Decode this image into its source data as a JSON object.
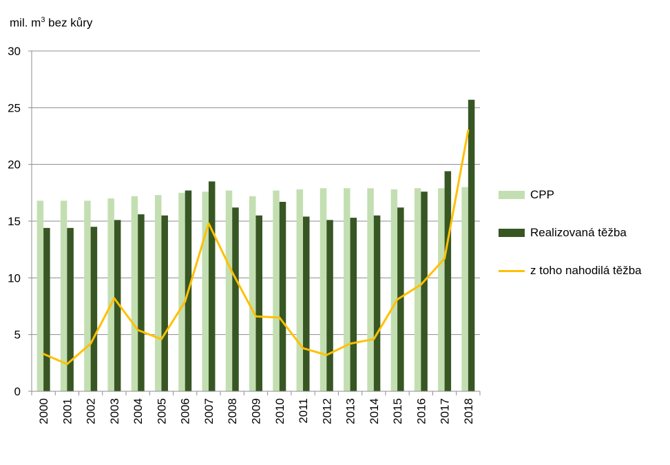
{
  "chart_data": {
    "type": "bar",
    "title": "",
    "unit_label": {
      "prefix": "mil. m",
      "sup": "3",
      "suffix": " bez kůry"
    },
    "xlabel": "",
    "ylabel": "",
    "ylim": [
      0,
      30
    ],
    "yticks": [
      0,
      5,
      10,
      15,
      20,
      25,
      30
    ],
    "grid": true,
    "legend": "right",
    "categories": [
      "2000",
      "2001",
      "2002",
      "2003",
      "2004",
      "2005",
      "2006",
      "2007",
      "2008",
      "2009",
      "2010",
      "2011",
      "2012",
      "2013",
      "2014",
      "2015",
      "2016",
      "2017",
      "2018"
    ],
    "series": [
      {
        "name": "CPP",
        "type": "bar",
        "color": "#c3dfb2",
        "values": [
          16.8,
          16.8,
          16.8,
          17.0,
          17.2,
          17.3,
          17.5,
          17.6,
          17.7,
          17.2,
          17.7,
          17.8,
          17.9,
          17.9,
          17.9,
          17.8,
          17.9,
          17.9,
          18.0
        ]
      },
      {
        "name": "Realizovaná těžba",
        "type": "bar",
        "color": "#375623",
        "values": [
          14.4,
          14.4,
          14.5,
          15.1,
          15.6,
          15.5,
          17.7,
          18.5,
          16.2,
          15.5,
          16.7,
          15.4,
          15.1,
          15.3,
          15.5,
          16.2,
          17.6,
          19.4,
          25.7
        ]
      },
      {
        "name": "z toho nahodilá těžba",
        "type": "line",
        "color": "#ffc000",
        "values": [
          3.3,
          2.4,
          4.2,
          8.2,
          5.4,
          4.6,
          7.9,
          14.8,
          10.5,
          6.6,
          6.5,
          3.8,
          3.2,
          4.2,
          4.6,
          8.1,
          9.4,
          11.7,
          23.0
        ]
      }
    ]
  }
}
